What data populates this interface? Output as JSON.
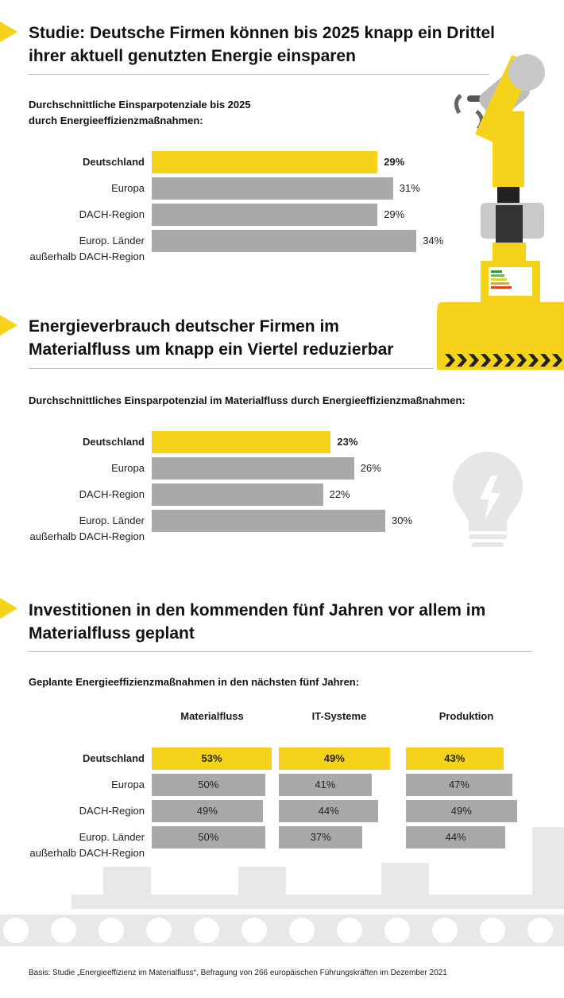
{
  "sections": [
    {
      "title_line1": "Studie: Deutsche Firmen können bis 2025 knapp ein Drittel",
      "title_line2": "ihrer aktuell genutzten Energie einsparen",
      "subtitle_line1": "Durchschnittliche Einsparpotenziale bis 2025",
      "subtitle_line2": "durch Energieeffizienzmaßnahmen:"
    },
    {
      "title_line1": "Energieverbrauch deutscher Firmen im",
      "title_line2": "Materialfluss um knapp ein Viertel reduzierbar",
      "subtitle_line1": "Durchschnittliches Einsparpotenzial im Materialfluss durch Energieeffizienzmaßnahmen:"
    },
    {
      "title_line1": "Investitionen in den kommenden fünf Jahren vor allem im",
      "title_line2": "Materialfluss geplant",
      "subtitle_line1": "Geplante Energieeffizienzmaßnahmen in den nächsten fünf Jahren:"
    }
  ],
  "footnote": "Basis: Studie „Energieeffizienz im Materialfluss“, Befragung von 266 europäischen Führungskräften im Dezember 2021",
  "colors": {
    "highlight": "#f6d31b",
    "bar": "#a9a9a9",
    "rule": "#f2c500"
  },
  "chart_data": [
    {
      "type": "bar",
      "orientation": "horizontal",
      "title": "Durchschnittliche Einsparpotenziale bis 2025 durch Energieeffizienzmaßnahmen:",
      "categories": [
        "Deutschland",
        "Europa",
        "DACH-Region",
        "Europ. Länder außerhalb DACH-Region"
      ],
      "category_lines": [
        [
          "Deutschland"
        ],
        [
          "Europa"
        ],
        [
          "DACH-Region"
        ],
        [
          "Europ. Länder",
          "außerhalb DACH-Region"
        ]
      ],
      "values": [
        29,
        31,
        29,
        34
      ],
      "labels": [
        "29%",
        "31%",
        "29%",
        "34%"
      ],
      "highlight_index": 0
    },
    {
      "type": "bar",
      "orientation": "horizontal",
      "title": "Durchschnittliches Einsparpotenzial im Materialfluss durch Energieeffizienzmaßnahmen:",
      "categories": [
        "Deutschland",
        "Europa",
        "DACH-Region",
        "Europ. Länder außerhalb DACH-Region"
      ],
      "category_lines": [
        [
          "Deutschland"
        ],
        [
          "Europa"
        ],
        [
          "DACH-Region"
        ],
        [
          "Europ. Länder",
          "außerhalb DACH-Region"
        ]
      ],
      "values": [
        23,
        26,
        22,
        30
      ],
      "labels": [
        "23%",
        "26%",
        "22%",
        "30%"
      ],
      "highlight_index": 0
    },
    {
      "type": "bar",
      "orientation": "horizontal",
      "title": "Geplante Energieeffizienzmaßnahmen in den nächsten fünf Jahren:",
      "categories": [
        "Deutschland",
        "Europa",
        "DACH-Region",
        "Europ. Länder außerhalb DACH-Region"
      ],
      "category_lines": [
        [
          "Deutschland"
        ],
        [
          "Europa"
        ],
        [
          "DACH-Region"
        ],
        [
          "Europ. Länder",
          "außerhalb DACH-Region"
        ]
      ],
      "series": [
        {
          "name": "Materialfluss",
          "values": [
            53,
            50,
            49,
            50
          ],
          "labels": [
            "53%",
            "50%",
            "49%",
            "50%"
          ]
        },
        {
          "name": "IT-Systeme",
          "values": [
            49,
            41,
            44,
            37
          ],
          "labels": [
            "49%",
            "41%",
            "44%",
            "37%"
          ]
        },
        {
          "name": "Produktion",
          "values": [
            43,
            47,
            49,
            44
          ],
          "labels": [
            "43%",
            "47%",
            "49%",
            "44%"
          ]
        }
      ],
      "highlight_index": 0
    }
  ]
}
